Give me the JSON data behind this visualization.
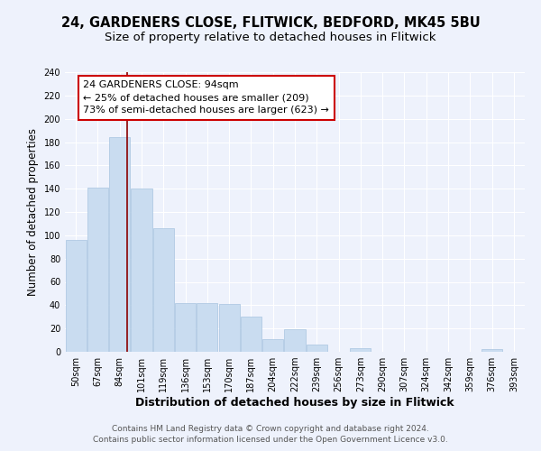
{
  "title1": "24, GARDENERS CLOSE, FLITWICK, BEDFORD, MK45 5BU",
  "title2": "Size of property relative to detached houses in Flitwick",
  "xlabel": "Distribution of detached houses by size in Flitwick",
  "ylabel": "Number of detached properties",
  "categories": [
    "50sqm",
    "67sqm",
    "84sqm",
    "101sqm",
    "119sqm",
    "136sqm",
    "153sqm",
    "170sqm",
    "187sqm",
    "204sqm",
    "222sqm",
    "239sqm",
    "256sqm",
    "273sqm",
    "290sqm",
    "307sqm",
    "324sqm",
    "342sqm",
    "359sqm",
    "376sqm",
    "393sqm"
  ],
  "values": [
    96,
    141,
    184,
    140,
    106,
    42,
    42,
    41,
    30,
    11,
    19,
    6,
    0,
    3,
    0,
    0,
    0,
    0,
    0,
    2,
    0
  ],
  "bar_color": "#c9dcf0",
  "bar_edge_color": "#a8c4e0",
  "vline_x": 2.35,
  "vline_color": "#8b0000",
  "annotation_line1": "24 GARDENERS CLOSE: 94sqm",
  "annotation_line2": "← 25% of detached houses are smaller (209)",
  "annotation_line3": "73% of semi-detached houses are larger (623) →",
  "footer1": "Contains HM Land Registry data © Crown copyright and database right 2024.",
  "footer2": "Contains public sector information licensed under the Open Government Licence v3.0.",
  "ylim": [
    0,
    240
  ],
  "yticks": [
    0,
    20,
    40,
    60,
    80,
    100,
    120,
    140,
    160,
    180,
    200,
    220,
    240
  ],
  "bg_color": "#eef2fc",
  "grid_color": "#ffffff",
  "title_fontsize": 10.5,
  "subtitle_fontsize": 9.5,
  "xlabel_fontsize": 9,
  "ylabel_fontsize": 8.5,
  "tick_fontsize": 7,
  "annotation_fontsize": 8,
  "footer_fontsize": 6.5,
  "annotation_box_fc": "#ffffff",
  "annotation_box_ec": "#cc0000"
}
